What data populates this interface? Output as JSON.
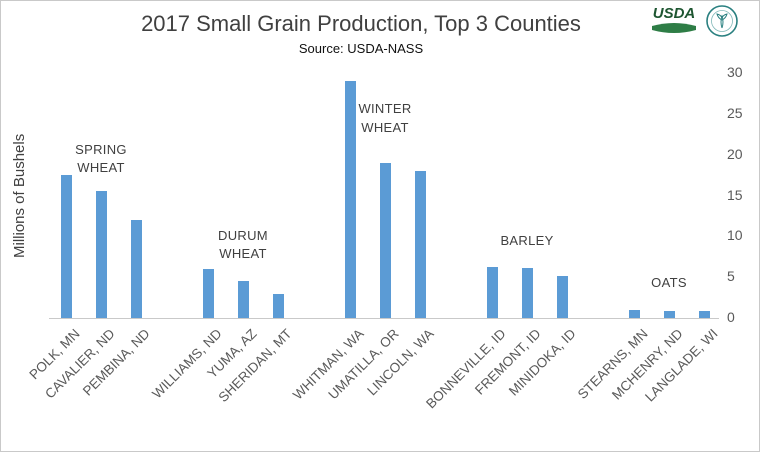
{
  "header": {
    "title": "2017 Small Grain Production, Top 3 Counties",
    "subtitle": "Source: USDA-NASS"
  },
  "logos": {
    "usda_text": "USDA"
  },
  "chart_data": {
    "type": "bar",
    "title": "2017 Small Grain Production, Top 3 Counties",
    "subtitle": "Source: USDA-NASS",
    "xlabel": "",
    "ylabel": "Millions of Bushels",
    "ylim": [
      0,
      30
    ],
    "yticks": [
      0,
      5,
      10,
      15,
      20,
      25,
      30
    ],
    "grid": "off",
    "legend": "none",
    "bar_color": "#5B9BD5",
    "categories": [
      "POLK, MN",
      "CAVALIER, ND",
      "PEMBINA, ND",
      "WILLIAMS, ND",
      "YUMA, AZ",
      "SHERIDAN, MT",
      "WHITMAN, WA",
      "UMATILLA, OR",
      "LINCOLN, WA",
      "BONNEVILLE, ID",
      "FREMONT, ID",
      "MINIDOKA, ID",
      "STEARNS, MN",
      "MCHENRY, ND",
      "LANGLADE, WI"
    ],
    "values": [
      17.5,
      15.5,
      12,
      6,
      4.5,
      3,
      29,
      19,
      18,
      6.3,
      6.1,
      5.2,
      1,
      0.8,
      0.8
    ],
    "groups": [
      {
        "label": "SPRING\nWHEAT",
        "group_index": 0,
        "label_bottom_value": 17.2
      },
      {
        "label": "DURUM\nWHEAT",
        "group_index": 1,
        "label_bottom_value": 6.7
      },
      {
        "label": "WINTER\nWHEAT",
        "group_index": 2,
        "label_bottom_value": 22.2
      },
      {
        "label": "BARLEY",
        "group_index": 3,
        "label_bottom_value": 8.3
      },
      {
        "label": "OATS",
        "group_index": 4,
        "label_bottom_value": 3.2
      }
    ]
  }
}
